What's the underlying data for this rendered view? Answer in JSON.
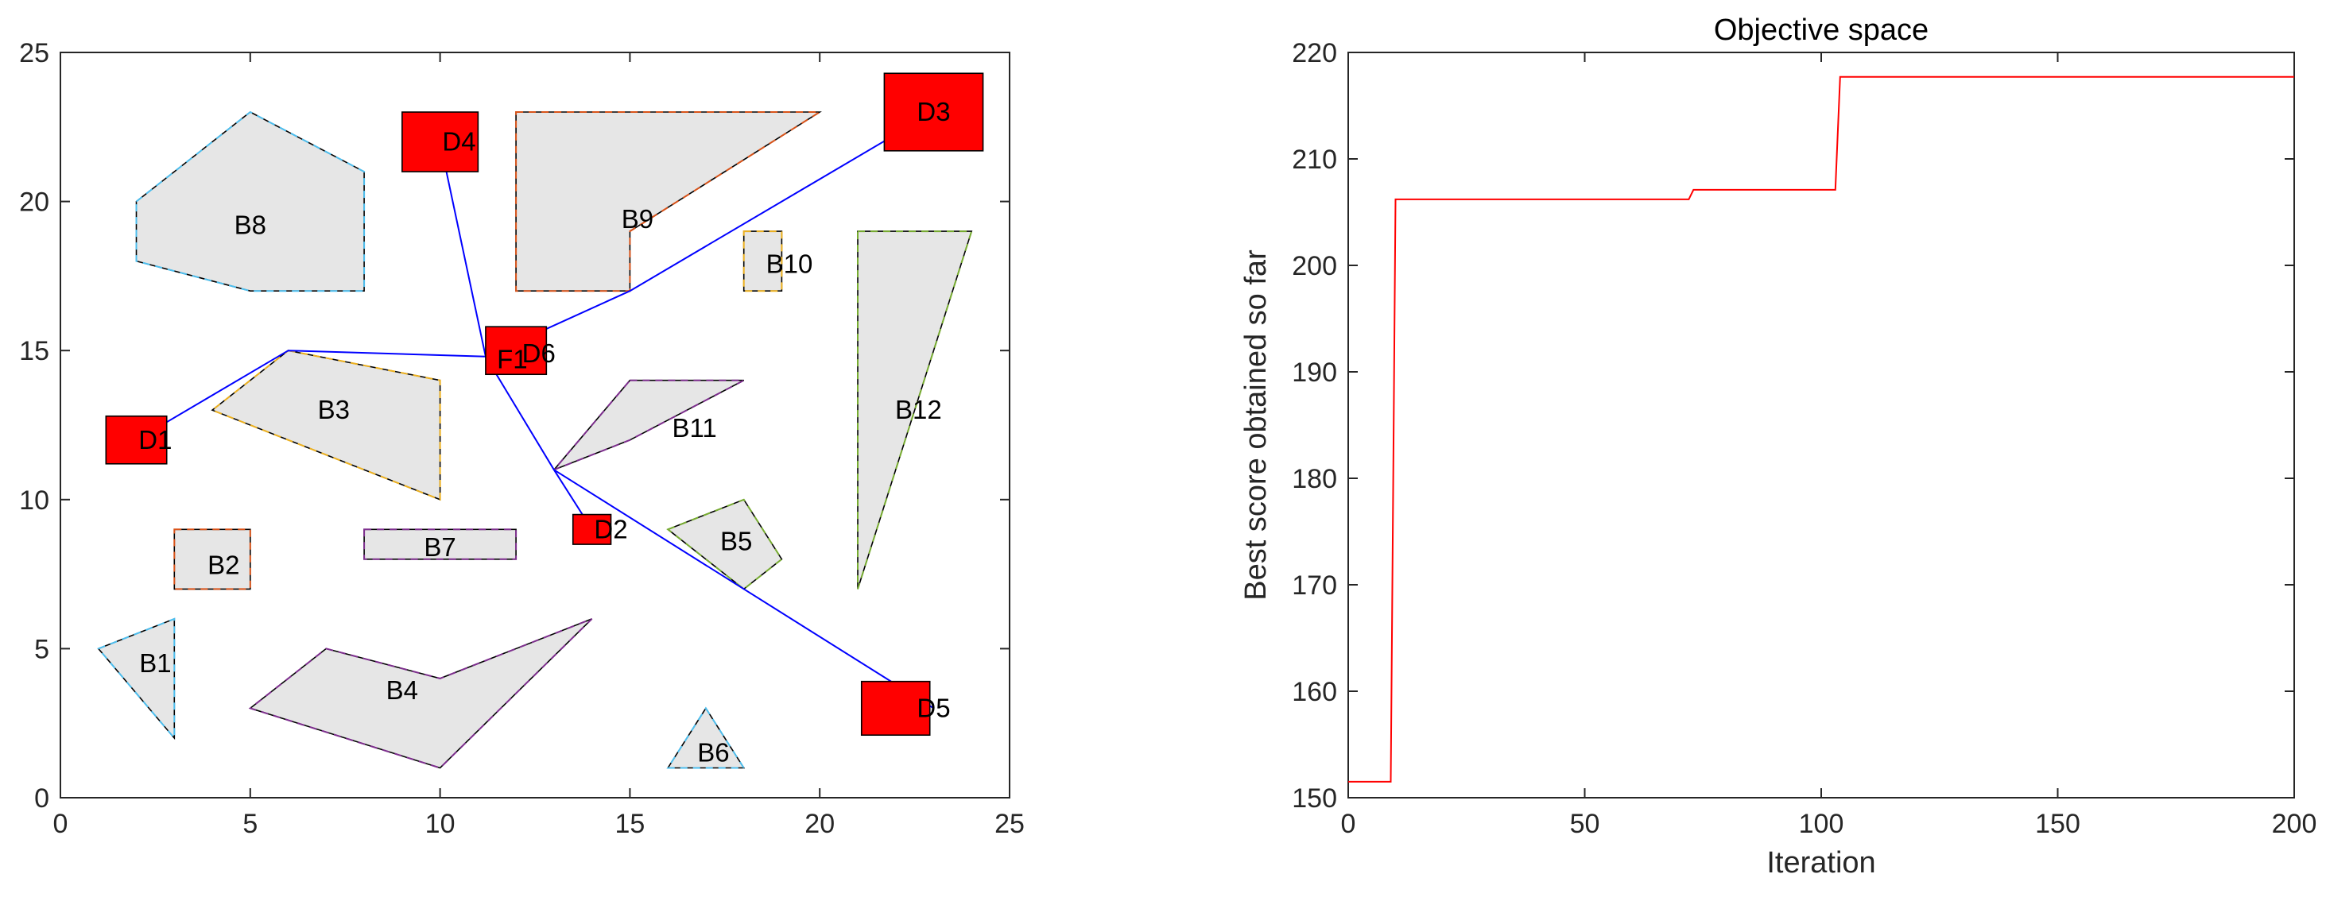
{
  "colors": {
    "obstacle_fill": "#e6e6e6",
    "node_fill": "#ff0000",
    "route_line": "#0000ff",
    "convergence_line": "#ff0000",
    "axis": "#262626",
    "dash_colors": [
      "#4dbeee",
      "#edb120",
      "#7e2f8e",
      "#77ac30",
      "#d95319",
      "#0072bd"
    ]
  },
  "chart_data": [
    {
      "type": "scatter",
      "description_of_marks": "map",
      "title": "",
      "xlabel": "",
      "ylabel": "",
      "xlim": [
        0,
        25
      ],
      "ylim": [
        0,
        25
      ],
      "xticks": [
        "0",
        "5",
        "10",
        "15",
        "20",
        "25"
      ],
      "yticks": [
        "0",
        "5",
        "10",
        "15",
        "20",
        "25"
      ],
      "grid": false,
      "obstacles": [
        {
          "label": "B1",
          "label_pos": [
            2.5,
            4.5
          ],
          "points": [
            [
              1,
              5
            ],
            [
              3,
              6
            ],
            [
              3,
              2
            ]
          ],
          "dash": 0
        },
        {
          "label": "B2",
          "label_pos": [
            4.3,
            7.8
          ],
          "points": [
            [
              3,
              9
            ],
            [
              5,
              9
            ],
            [
              5,
              7
            ],
            [
              3,
              7
            ]
          ],
          "dash": 4
        },
        {
          "label": "B3",
          "label_pos": [
            7.2,
            13
          ],
          "points": [
            [
              6,
              15
            ],
            [
              10,
              14
            ],
            [
              10,
              10
            ],
            [
              4,
              13
            ]
          ],
          "dash": 1
        },
        {
          "label": "B4",
          "label_pos": [
            9,
            3.6
          ],
          "points": [
            [
              7,
              5
            ],
            [
              10,
              4
            ],
            [
              14,
              6
            ],
            [
              10,
              1
            ],
            [
              5,
              3
            ]
          ],
          "dash": 2
        },
        {
          "label": "B5",
          "label_pos": [
            17.8,
            8.6
          ],
          "points": [
            [
              16,
              9
            ],
            [
              18,
              10
            ],
            [
              19,
              8
            ],
            [
              18,
              7
            ]
          ],
          "dash": 3
        },
        {
          "label": "B6",
          "label_pos": [
            17.2,
            1.5
          ],
          "points": [
            [
              17,
              3
            ],
            [
              18,
              1
            ],
            [
              16,
              1
            ]
          ],
          "dash": 0
        },
        {
          "label": "B7",
          "label_pos": [
            10,
            8.4
          ],
          "points": [
            [
              8,
              9
            ],
            [
              12,
              9
            ],
            [
              12,
              8
            ],
            [
              8,
              8
            ]
          ],
          "dash": 2
        },
        {
          "label": "B8",
          "label_pos": [
            5,
            19.2
          ],
          "points": [
            [
              2,
              20
            ],
            [
              5,
              23
            ],
            [
              8,
              21
            ],
            [
              8,
              17
            ],
            [
              5,
              17
            ],
            [
              2,
              18
            ]
          ],
          "dash": 0
        },
        {
          "label": "B9",
          "label_pos": [
            15.2,
            19.4
          ],
          "points": [
            [
              12,
              23
            ],
            [
              20,
              23
            ],
            [
              15,
              19
            ],
            [
              15,
              17
            ],
            [
              12,
              17
            ]
          ],
          "dash": 4
        },
        {
          "label": "B10",
          "label_pos": [
            19.2,
            17.9
          ],
          "points": [
            [
              18,
              19
            ],
            [
              19,
              19
            ],
            [
              19,
              17
            ],
            [
              18,
              17
            ]
          ],
          "dash": 1
        },
        {
          "label": "B11",
          "label_pos": [
            16.7,
            12.4
          ],
          "points": [
            [
              15,
              14
            ],
            [
              18,
              14
            ],
            [
              15,
              12
            ],
            [
              13,
              11
            ]
          ],
          "dash": 2
        },
        {
          "label": "B12",
          "label_pos": [
            22.6,
            13
          ],
          "points": [
            [
              21,
              19
            ],
            [
              24,
              19
            ],
            [
              21,
              7
            ]
          ],
          "dash": 3
        }
      ],
      "nodes": [
        {
          "label": "D1",
          "label_pos": [
            2.5,
            12
          ],
          "rect": [
            1.2,
            11.2,
            2.8,
            12.8
          ]
        },
        {
          "label": "D2",
          "label_pos": [
            14.5,
            9
          ],
          "rect": [
            13.5,
            8.5,
            14.5,
            9.5
          ]
        },
        {
          "label": "D3",
          "label_pos": [
            23,
            23
          ],
          "rect": [
            21.7,
            21.7,
            24.3,
            24.3
          ]
        },
        {
          "label": "D4",
          "label_pos": [
            10.5,
            22
          ],
          "rect": [
            9,
            21,
            11,
            23
          ]
        },
        {
          "label": "D5",
          "label_pos": [
            23,
            3
          ],
          "rect": [
            21.1,
            2.1,
            22.9,
            3.9
          ]
        },
        {
          "label": "D6",
          "label_pos": [
            12.6,
            14.9
          ],
          "rect": [
            11.2,
            14.2,
            12.8,
            15.8
          ]
        }
      ],
      "route_labels": [
        {
          "label": "F1",
          "label_pos": [
            11.9,
            14.7
          ]
        }
      ],
      "routes": [
        [
          [
            2,
            12
          ],
          [
            6,
            15
          ],
          [
            11.2,
            14.8
          ]
        ],
        [
          [
            11.2,
            14.8
          ],
          [
            10,
            22
          ]
        ],
        [
          [
            11.2,
            14.8
          ],
          [
            15,
            17
          ],
          [
            23,
            23
          ]
        ],
        [
          [
            11.2,
            14.8
          ],
          [
            13,
            11
          ],
          [
            14,
            9
          ]
        ],
        [
          [
            13,
            11
          ],
          [
            23,
            3
          ]
        ]
      ]
    },
    {
      "type": "line",
      "title": "Objective space",
      "xlabel": "Iteration",
      "ylabel": "Best score obtained so far",
      "xlim": [
        0,
        200
      ],
      "ylim": [
        150,
        220
      ],
      "xticks": [
        "0",
        "50",
        "100",
        "150",
        "200"
      ],
      "yticks": [
        "150",
        "160",
        "170",
        "180",
        "190",
        "200",
        "210",
        "220"
      ],
      "grid": false,
      "series": [
        {
          "x": [
            0,
            9,
            10,
            72,
            73,
            103,
            104,
            200
          ],
          "values": [
            151.5,
            151.5,
            206.2,
            206.2,
            207.1,
            207.1,
            217.7,
            217.7
          ]
        }
      ]
    }
  ]
}
